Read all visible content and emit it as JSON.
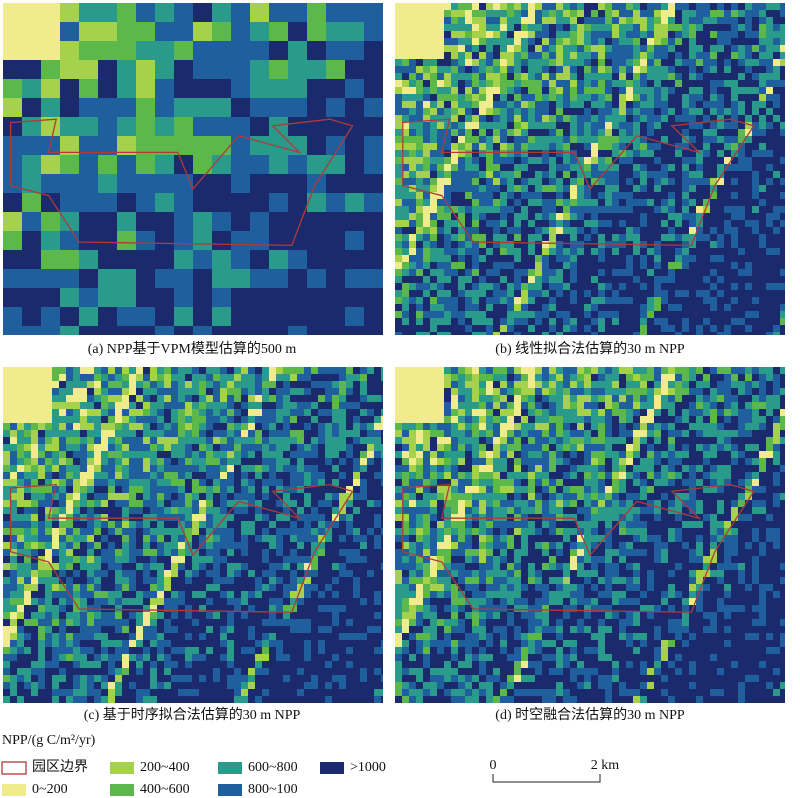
{
  "panels": [
    {
      "caption": "(a) NPP基于VPM模型估算的500 m"
    },
    {
      "caption": "(b) 线性拟合法估算的30 m NPP"
    },
    {
      "caption": "(c) 基于时序拟合法估算的30 m NPP"
    },
    {
      "caption": "(d) 时空融合法估算的30 m NPP"
    }
  ],
  "legend": {
    "title": "NPP/(g C/m²/yr)",
    "items": [
      {
        "label": "园区边界",
        "color": "#b03a3a"
      },
      {
        "label": "0~200",
        "color": "#f0eb8c"
      },
      {
        "label": "200~400",
        "color": "#a6d14a"
      },
      {
        "label": "400~600",
        "color": "#5cb84a"
      },
      {
        "label": "600~800",
        "color": "#2a9a8a"
      },
      {
        "label": "800~100",
        "color": "#1f5f9e"
      },
      {
        "label": ">1000",
        "color": "#1a2a6c"
      }
    ]
  },
  "scale_bar": {
    "start": "0",
    "end": "2 km"
  }
}
